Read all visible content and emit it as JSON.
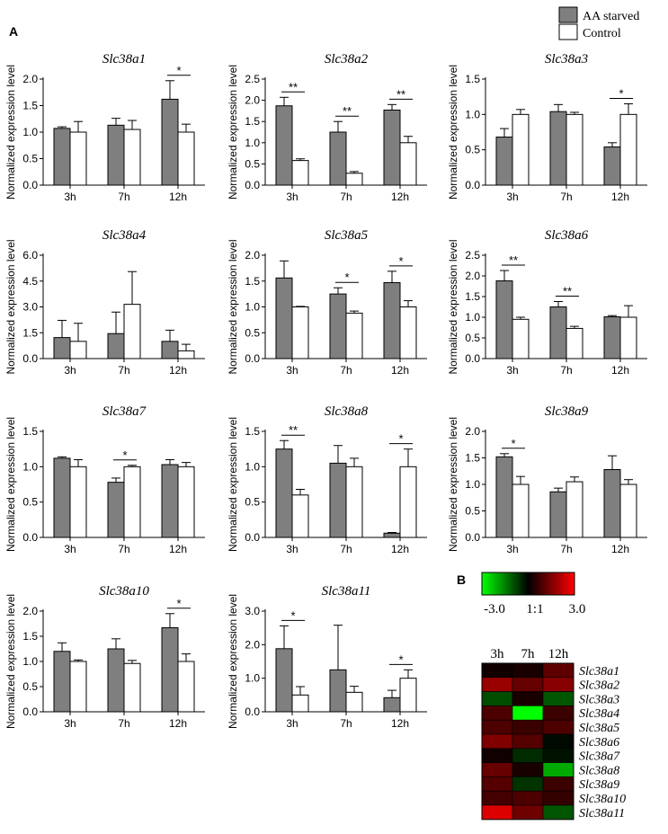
{
  "panel_labels": {
    "a": "A",
    "b": "B"
  },
  "legend": {
    "starved": "AA starved",
    "control": "Control",
    "starved_color": "#7f7f7f",
    "control_color": "#ffffff"
  },
  "chart_data": [
    {
      "type": "bar",
      "title": "Slc38a1",
      "ylabel": "Normalized expression level",
      "categories": [
        "3h",
        "7h",
        "12h"
      ],
      "ylim": [
        0,
        2.0
      ],
      "yticks": [
        "0.0",
        "0.5",
        "1.0",
        "1.5",
        "2.0"
      ],
      "series": [
        {
          "name": "AA starved",
          "values": [
            1.07,
            1.13,
            1.62
          ],
          "errors": [
            0.03,
            0.13,
            0.35
          ]
        },
        {
          "name": "Control",
          "values": [
            1.0,
            1.05,
            1.0
          ],
          "errors": [
            0.2,
            0.17,
            0.15
          ]
        }
      ],
      "significance": [
        {
          "category": "12h",
          "label": "*"
        }
      ]
    },
    {
      "type": "bar",
      "title": "Slc38a2",
      "ylabel": "Normalized expression level",
      "categories": [
        "3h",
        "7h",
        "12h"
      ],
      "ylim": [
        0,
        2.5
      ],
      "yticks": [
        "0.0",
        "0.5",
        "1.0",
        "1.5",
        "2.0",
        "2.5"
      ],
      "series": [
        {
          "name": "AA starved",
          "values": [
            1.87,
            1.25,
            1.77
          ],
          "errors": [
            0.2,
            0.25,
            0.13
          ]
        },
        {
          "name": "Control",
          "values": [
            0.58,
            0.28,
            1.0
          ],
          "errors": [
            0.04,
            0.04,
            0.15
          ]
        }
      ],
      "significance": [
        {
          "category": "3h",
          "label": "**"
        },
        {
          "category": "7h",
          "label": "**"
        },
        {
          "category": "12h",
          "label": "**"
        }
      ]
    },
    {
      "type": "bar",
      "title": "Slc38a3",
      "ylabel": "Normalized expression level",
      "categories": [
        "3h",
        "7h",
        "12h"
      ],
      "ylim": [
        0,
        1.5
      ],
      "yticks": [
        "0.0",
        "0.5",
        "1.0",
        "1.5"
      ],
      "series": [
        {
          "name": "AA starved",
          "values": [
            0.68,
            1.04,
            0.54
          ],
          "errors": [
            0.12,
            0.1,
            0.06
          ]
        },
        {
          "name": "Control",
          "values": [
            1.0,
            1.0,
            1.0
          ],
          "errors": [
            0.07,
            0.03,
            0.15
          ]
        }
      ],
      "significance": [
        {
          "category": "12h",
          "label": "*"
        }
      ]
    },
    {
      "type": "bar",
      "title": "Slc38a4",
      "ylabel": "Normalized expression level",
      "categories": [
        "3h",
        "7h",
        "12h"
      ],
      "ylim": [
        0,
        6.0
      ],
      "yticks": [
        "0.0",
        "1.5",
        "3.0",
        "4.5",
        "6.0"
      ],
      "series": [
        {
          "name": "AA starved",
          "values": [
            1.22,
            1.45,
            1.0
          ],
          "errors": [
            1.0,
            1.25,
            0.65
          ]
        },
        {
          "name": "Control",
          "values": [
            1.0,
            3.15,
            0.45
          ],
          "errors": [
            1.05,
            1.9,
            0.38
          ]
        }
      ],
      "significance": []
    },
    {
      "type": "bar",
      "title": "Slc38a5",
      "ylabel": "Normalized expression level",
      "categories": [
        "3h",
        "7h",
        "12h"
      ],
      "ylim": [
        0,
        2.0
      ],
      "yticks": [
        "0.0",
        "0.5",
        "1.0",
        "1.5",
        "2.0"
      ],
      "series": [
        {
          "name": "AA starved",
          "values": [
            1.56,
            1.25,
            1.47
          ],
          "errors": [
            0.33,
            0.12,
            0.22
          ]
        },
        {
          "name": "Control",
          "values": [
            1.0,
            0.88,
            1.0
          ],
          "errors": [
            0.01,
            0.04,
            0.12
          ]
        }
      ],
      "significance": [
        {
          "category": "7h",
          "label": "*"
        },
        {
          "category": "12h",
          "label": "*"
        }
      ]
    },
    {
      "type": "bar",
      "title": "Slc38a6",
      "ylabel": "Normalized expression level",
      "categories": [
        "3h",
        "7h",
        "12h"
      ],
      "ylim": [
        0,
        2.5
      ],
      "yticks": [
        "0.0",
        "0.5",
        "1.0",
        "1.5",
        "2.0",
        "2.5"
      ],
      "series": [
        {
          "name": "AA starved",
          "values": [
            1.88,
            1.25,
            1.01
          ],
          "errors": [
            0.25,
            0.13,
            0.03
          ]
        },
        {
          "name": "Control",
          "values": [
            0.95,
            0.73,
            1.0
          ],
          "errors": [
            0.05,
            0.05,
            0.28
          ]
        }
      ],
      "significance": [
        {
          "category": "3h",
          "label": "**"
        },
        {
          "category": "7h",
          "label": "**"
        }
      ]
    },
    {
      "type": "bar",
      "title": "Slc38a7",
      "ylabel": "Normalized expression level",
      "categories": [
        "3h",
        "7h",
        "12h"
      ],
      "ylim": [
        0,
        1.5
      ],
      "yticks": [
        "0.0",
        "0.5",
        "1.0",
        "1.5"
      ],
      "series": [
        {
          "name": "AA starved",
          "values": [
            1.12,
            0.78,
            1.03
          ],
          "errors": [
            0.02,
            0.06,
            0.07
          ]
        },
        {
          "name": "Control",
          "values": [
            1.0,
            1.0,
            1.0
          ],
          "errors": [
            0.1,
            0.02,
            0.06
          ]
        }
      ],
      "significance": [
        {
          "category": "7h",
          "label": "*"
        }
      ]
    },
    {
      "type": "bar",
      "title": "Slc38a8",
      "ylabel": "Normalized expression level",
      "categories": [
        "3h",
        "7h",
        "12h"
      ],
      "ylim": [
        0,
        1.5
      ],
      "yticks": [
        "0.0",
        "0.5",
        "1.0",
        "1.5"
      ],
      "series": [
        {
          "name": "AA starved",
          "values": [
            1.25,
            1.05,
            0.06
          ],
          "errors": [
            0.12,
            0.25,
            0.01
          ]
        },
        {
          "name": "Control",
          "values": [
            0.6,
            1.0,
            1.0
          ],
          "errors": [
            0.08,
            0.12,
            0.25
          ]
        }
      ],
      "significance": [
        {
          "category": "3h",
          "label": "**"
        },
        {
          "category": "12h",
          "label": "*"
        }
      ]
    },
    {
      "type": "bar",
      "title": "Slc38a9",
      "ylabel": "Normalized expression level",
      "categories": [
        "3h",
        "7h",
        "12h"
      ],
      "ylim": [
        0,
        2.0
      ],
      "yticks": [
        "0.0",
        "0.5",
        "1.0",
        "1.5",
        "2.0"
      ],
      "series": [
        {
          "name": "AA starved",
          "values": [
            1.52,
            0.86,
            1.28
          ],
          "errors": [
            0.06,
            0.07,
            0.26
          ]
        },
        {
          "name": "Control",
          "values": [
            1.0,
            1.05,
            1.0
          ],
          "errors": [
            0.15,
            0.09,
            0.09
          ]
        }
      ],
      "significance": [
        {
          "category": "3h",
          "label": "*"
        }
      ]
    },
    {
      "type": "bar",
      "title": "Slc38a10",
      "ylabel": "Normalized expression level",
      "categories": [
        "3h",
        "7h",
        "12h"
      ],
      "ylim": [
        0,
        2.0
      ],
      "yticks": [
        "0.0",
        "0.5",
        "1.0",
        "1.5",
        "2.0"
      ],
      "series": [
        {
          "name": "AA starved",
          "values": [
            1.2,
            1.25,
            1.67
          ],
          "errors": [
            0.17,
            0.2,
            0.28
          ]
        },
        {
          "name": "Control",
          "values": [
            1.0,
            0.96,
            1.0
          ],
          "errors": [
            0.03,
            0.06,
            0.15
          ]
        }
      ],
      "significance": [
        {
          "category": "12h",
          "label": "*"
        }
      ]
    },
    {
      "type": "bar",
      "title": "Slc38a11",
      "ylabel": "Normalized expression level",
      "categories": [
        "3h",
        "7h",
        "12h"
      ],
      "ylim": [
        0,
        3.0
      ],
      "yticks": [
        "0.0",
        "1.0",
        "2.0",
        "3.0"
      ],
      "series": [
        {
          "name": "AA starved",
          "values": [
            1.88,
            1.25,
            0.42
          ],
          "errors": [
            0.68,
            1.33,
            0.22
          ]
        },
        {
          "name": "Control",
          "values": [
            0.5,
            0.58,
            1.0
          ],
          "errors": [
            0.25,
            0.18,
            0.25
          ]
        }
      ],
      "significance": [
        {
          "category": "3h",
          "label": "*"
        },
        {
          "category": "12h",
          "label": "*"
        }
      ]
    },
    {
      "type": "heatmap",
      "columns": [
        "3h",
        "7h",
        "12h"
      ],
      "rows": [
        "Slc38a1",
        "Slc38a2",
        "Slc38a3",
        "Slc38a4",
        "Slc38a5",
        "Slc38a6",
        "Slc38a7",
        "Slc38a8",
        "Slc38a9",
        "Slc38a10",
        "Slc38a11"
      ],
      "values": [
        [
          0.2,
          0.3,
          1.1
        ],
        [
          1.8,
          1.2,
          1.6
        ],
        [
          -0.9,
          0.3,
          -1.0
        ],
        [
          0.9,
          -3.0,
          0.7
        ],
        [
          0.9,
          0.7,
          0.9
        ],
        [
          1.5,
          1.0,
          -0.1
        ],
        [
          0.2,
          -0.5,
          -0.2
        ],
        [
          1.2,
          0.3,
          -2.0
        ],
        [
          1.0,
          -0.6,
          0.7
        ],
        [
          0.8,
          0.9,
          0.6
        ],
        [
          2.6,
          1.3,
          -1.0
        ]
      ],
      "scale": {
        "min": -3.0,
        "mid": 0,
        "max": 3.0,
        "labels": [
          "-3.0",
          "1:1",
          "3.0"
        ],
        "low_color": "#00ff00",
        "mid_color": "#000000",
        "high_color": "#ff0000"
      }
    }
  ]
}
